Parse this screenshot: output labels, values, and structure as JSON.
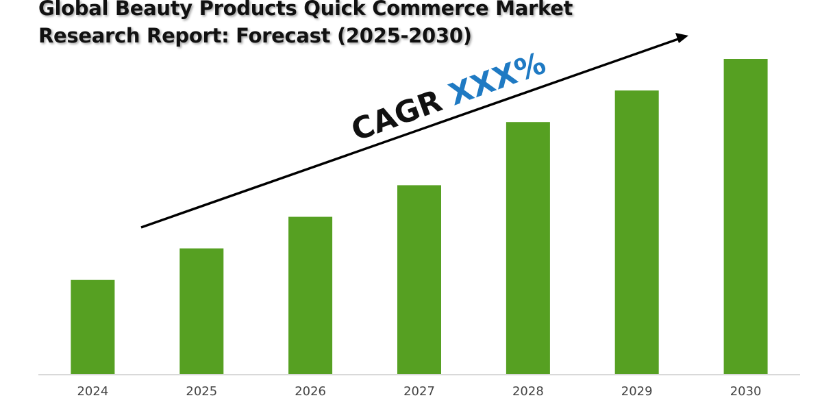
{
  "title_line1": "Global Beauty Products Quick Commerce Market",
  "title_line2": "Research Report: Forecast (2025-2030)",
  "annotation": {
    "prefix": "CAGR ",
    "value": "XXX%"
  },
  "colors": {
    "bar": "#56a022",
    "axis": "#d9d9d9",
    "arrow": "#000000",
    "cagr_label": "#111111",
    "cagr_value": "#1f7ac3"
  },
  "chart_data": {
    "type": "bar",
    "categories": [
      "2024",
      "2025",
      "2026",
      "2027",
      "2028",
      "2029",
      "2030"
    ],
    "values": [
      30,
      40,
      50,
      60,
      80,
      90,
      100
    ],
    "ylim": [
      0,
      100
    ],
    "grid": false,
    "legend": "none"
  }
}
